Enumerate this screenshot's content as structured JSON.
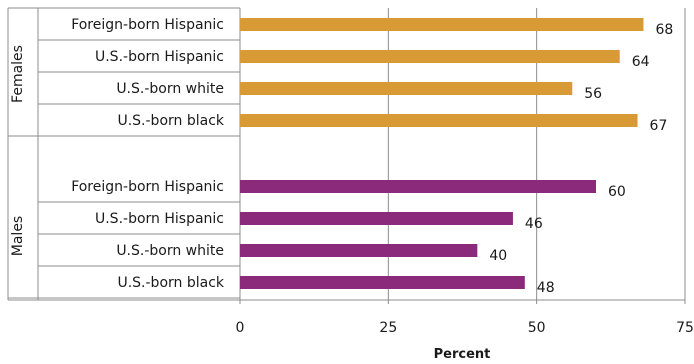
{
  "chart_data": {
    "type": "bar",
    "orientation": "horizontal",
    "xlabel": "Percent",
    "xlim": [
      0,
      75
    ],
    "xticks": [
      0,
      25,
      50,
      75
    ],
    "grid": true,
    "groups": [
      {
        "name": "Females",
        "color": "#D79A35",
        "categories": [
          "Foreign-born Hispanic",
          "U.S.-born Hispanic",
          "U.S.-born white",
          "U.S.-born black"
        ],
        "values": [
          68,
          64,
          56,
          67
        ]
      },
      {
        "name": "Males",
        "color": "#8B2A7A",
        "categories": [
          "Foreign-born Hispanic",
          "U.S.-born Hispanic",
          "U.S.-born white",
          "U.S.-born black"
        ],
        "values": [
          60,
          46,
          40,
          48
        ]
      }
    ]
  }
}
